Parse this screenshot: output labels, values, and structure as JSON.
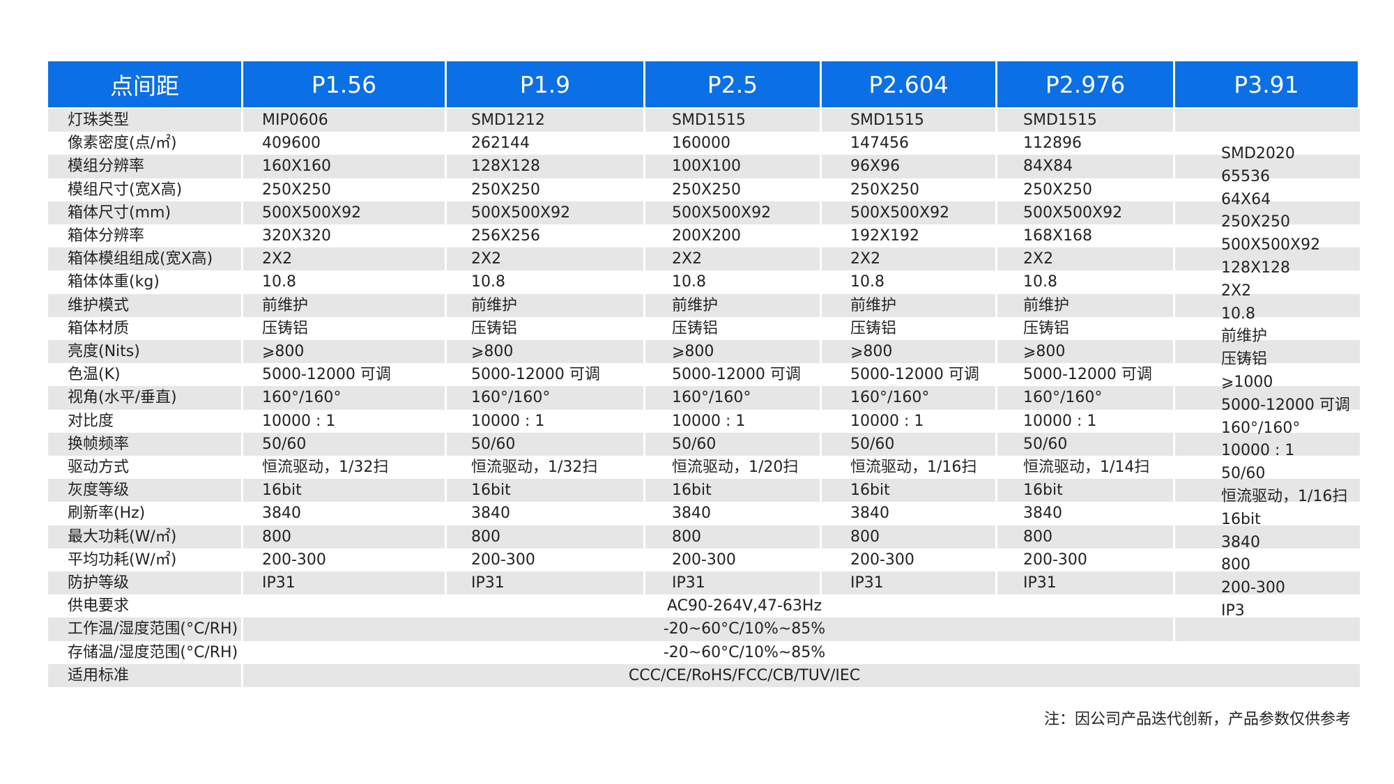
{
  "table": {
    "header": [
      "点间距",
      "P1.56",
      "P1.9",
      "P2.5",
      "P2.604",
      "P2.976",
      "P3.91"
    ],
    "rows": [
      {
        "label": "灯珠类型",
        "cells": [
          "MIP0606",
          "SMD1212",
          "SMD1515",
          "SMD1515",
          "SMD1515"
        ]
      },
      {
        "label": "像素密度(点/㎡)",
        "cells": [
          "409600",
          "262144",
          "160000",
          "147456",
          "112896"
        ]
      },
      {
        "label": "模组分辨率",
        "cells": [
          "160X160",
          "128X128",
          "100X100",
          "96X96",
          "84X84"
        ]
      },
      {
        "label": "模组尺寸(宽X高)",
        "cells": [
          "250X250",
          "250X250",
          "250X250",
          "250X250",
          "250X250"
        ]
      },
      {
        "label": "箱体尺寸(mm)",
        "cells": [
          "500X500X92",
          "500X500X92",
          "500X500X92",
          "500X500X92",
          "500X500X92"
        ]
      },
      {
        "label": "箱体分辨率",
        "cells": [
          "320X320",
          "256X256",
          "200X200",
          "192X192",
          "168X168"
        ]
      },
      {
        "label": "箱体模组组成(宽X高)",
        "cells": [
          "2X2",
          "2X2",
          "2X2",
          "2X2",
          "2X2"
        ]
      },
      {
        "label": "箱体体重(kg)",
        "cells": [
          "10.8",
          "10.8",
          "10.8",
          "10.8",
          "10.8"
        ]
      },
      {
        "label": "维护模式",
        "cells": [
          "前维护",
          "前维护",
          "前维护",
          "前维护",
          "前维护"
        ]
      },
      {
        "label": "箱体材质",
        "cells": [
          "压铸铝",
          "压铸铝",
          "压铸铝",
          "压铸铝",
          "压铸铝"
        ]
      },
      {
        "label": "亮度(Nits)",
        "cells": [
          "⩾800",
          "⩾800",
          "⩾800",
          "⩾800",
          "⩾800"
        ]
      },
      {
        "label": "色温(K)",
        "cells": [
          "5000-12000 可调",
          "5000-12000 可调",
          "5000-12000 可调",
          "5000-12000 可调",
          "5000-12000 可调"
        ]
      },
      {
        "label": "视角(水平/垂直)",
        "cells": [
          "160°/160°",
          "160°/160°",
          "160°/160°",
          "160°/160°",
          "160°/160°"
        ]
      },
      {
        "label": "对比度",
        "cells": [
          "10000 : 1",
          "10000 : 1",
          "10000 : 1",
          "10000 : 1",
          "10000 : 1"
        ]
      },
      {
        "label": "换帧频率",
        "cells": [
          "50/60",
          "50/60",
          "50/60",
          "50/60",
          "50/60"
        ]
      },
      {
        "label": "驱动方式",
        "cells": [
          "恒流驱动，1/32扫",
          "恒流驱动，1/32扫",
          "恒流驱动，1/20扫",
          "恒流驱动，1/16扫",
          "恒流驱动，1/14扫"
        ]
      },
      {
        "label": "灰度等级",
        "cells": [
          "16bit",
          "16bit",
          "16bit",
          "16bit",
          "16bit"
        ]
      },
      {
        "label": "刷新率(Hz)",
        "cells": [
          "3840",
          "3840",
          "3840",
          "3840",
          "3840"
        ]
      },
      {
        "label": "最大功耗(W/㎡)",
        "cells": [
          "800",
          "800",
          "800",
          "800",
          "800"
        ]
      },
      {
        "label": "平均功耗(W/㎡)",
        "cells": [
          "200-300",
          "200-300",
          "200-300",
          "200-300",
          "200-300"
        ]
      },
      {
        "label": "防护等级",
        "cells": [
          "IP31",
          "IP31",
          "IP31",
          "IP31",
          "IP31"
        ]
      }
    ],
    "merged_rows": [
      {
        "label": "供电要求",
        "value": "AC90-264V,47-63Hz"
      },
      {
        "label": "工作温/湿度范围(°C/RH)",
        "value": "-20~60°C/10%~85%"
      },
      {
        "label": "存储温/湿度范围(°C/RH)",
        "value": "-20~60°C/10%~85%"
      },
      {
        "label": "适用标准",
        "value": "CCC/CE/RoHS/FCC/CB/TUV/IEC"
      }
    ],
    "last_column": [
      "SMD2020",
      "65536",
      "64X64",
      "250X250",
      "500X500X92",
      "128X128",
      "2X2",
      "10.8",
      "前维护",
      "压铸铝",
      "⩾1000",
      "5000-12000 可调",
      "160°/160°",
      "10000 : 1",
      "50/60",
      "恒流驱动，1/16扫",
      "16bit",
      "3840",
      "800",
      "200-300",
      "IP3"
    ],
    "note": "注：因公司产品迭代创新，产品参数仅供参考"
  }
}
